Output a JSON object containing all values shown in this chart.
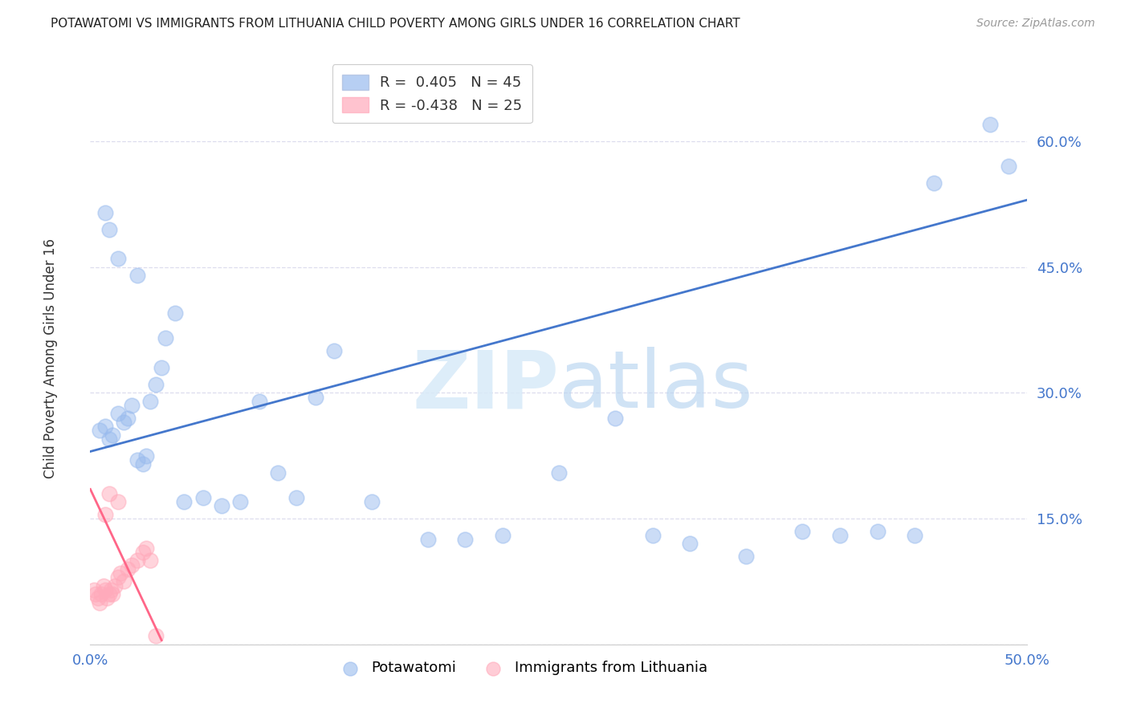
{
  "title": "POTAWATOMI VS IMMIGRANTS FROM LITHUANIA CHILD POVERTY AMONG GIRLS UNDER 16 CORRELATION CHART",
  "source": "Source: ZipAtlas.com",
  "ylabel": "Child Poverty Among Girls Under 16",
  "xlim": [
    0.0,
    0.5
  ],
  "ylim": [
    0.0,
    0.7
  ],
  "yticks": [
    0.0,
    0.15,
    0.3,
    0.45,
    0.6
  ],
  "ytick_labels": [
    "",
    "15.0%",
    "30.0%",
    "45.0%",
    "60.0%"
  ],
  "xticks": [
    0.0,
    0.1,
    0.2,
    0.3,
    0.4,
    0.5
  ],
  "xtick_labels": [
    "0.0%",
    "",
    "",
    "",
    "",
    "50.0%"
  ],
  "legend_blue_r": "R =  0.405",
  "legend_blue_n": "N = 45",
  "legend_pink_r": "R = -0.438",
  "legend_pink_n": "N = 25",
  "blue_color": "#99BBEE",
  "pink_color": "#FFAABB",
  "line_blue_color": "#4477CC",
  "line_pink_color": "#FF6688",
  "tick_color": "#4477CC",
  "watermark_color": "#D8EAF8",
  "blue_scatter_x": [
    0.005,
    0.008,
    0.01,
    0.012,
    0.015,
    0.018,
    0.02,
    0.022,
    0.025,
    0.028,
    0.03,
    0.032,
    0.035,
    0.038,
    0.04,
    0.045,
    0.05,
    0.06,
    0.07,
    0.08,
    0.09,
    0.1,
    0.11,
    0.12,
    0.13,
    0.15,
    0.18,
    0.2,
    0.22,
    0.25,
    0.28,
    0.3,
    0.32,
    0.35,
    0.38,
    0.4,
    0.42,
    0.44,
    0.45,
    0.48,
    0.49,
    0.025,
    0.015,
    0.01,
    0.008
  ],
  "blue_scatter_y": [
    0.255,
    0.26,
    0.245,
    0.25,
    0.275,
    0.265,
    0.27,
    0.285,
    0.22,
    0.215,
    0.225,
    0.29,
    0.31,
    0.33,
    0.365,
    0.395,
    0.17,
    0.175,
    0.165,
    0.17,
    0.29,
    0.205,
    0.175,
    0.295,
    0.35,
    0.17,
    0.125,
    0.125,
    0.13,
    0.205,
    0.27,
    0.13,
    0.12,
    0.105,
    0.135,
    0.13,
    0.135,
    0.13,
    0.55,
    0.62,
    0.57,
    0.44,
    0.46,
    0.495,
    0.515
  ],
  "pink_scatter_x": [
    0.002,
    0.003,
    0.004,
    0.005,
    0.006,
    0.007,
    0.008,
    0.009,
    0.01,
    0.011,
    0.012,
    0.013,
    0.015,
    0.016,
    0.018,
    0.02,
    0.022,
    0.025,
    0.028,
    0.03,
    0.032,
    0.015,
    0.01,
    0.008,
    0.035
  ],
  "pink_scatter_y": [
    0.065,
    0.06,
    0.055,
    0.05,
    0.06,
    0.07,
    0.065,
    0.055,
    0.06,
    0.065,
    0.06,
    0.07,
    0.08,
    0.085,
    0.075,
    0.09,
    0.095,
    0.1,
    0.11,
    0.115,
    0.1,
    0.17,
    0.18,
    0.155,
    0.01
  ],
  "blue_line_x": [
    0.0,
    0.5
  ],
  "blue_line_y": [
    0.23,
    0.53
  ],
  "pink_line_x": [
    0.0,
    0.038
  ],
  "pink_line_y": [
    0.185,
    0.005
  ],
  "background_color": "#FFFFFF",
  "grid_color": "#DDDDEE"
}
